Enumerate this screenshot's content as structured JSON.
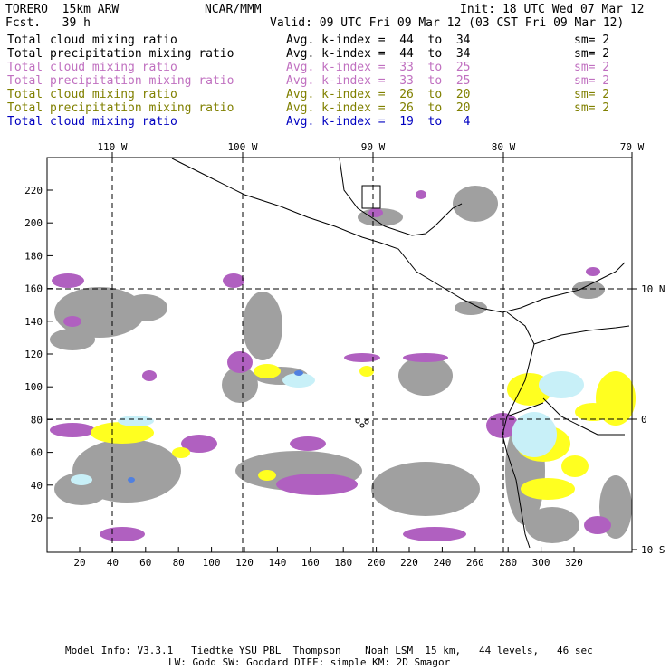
{
  "header": {
    "model": "TORERO  15km ARW",
    "center": "NCAR/MMM",
    "init": "Init: 18 UTC Wed 07 Mar 12",
    "fcst": "Fcst.   39 h",
    "valid": "Valid: 09 UTC Fri 09 Mar 12 (03 CST Fri 09 Mar 12)"
  },
  "legend": [
    {
      "field": "Total cloud mixing ratio",
      "kindex": "Avg. k-index =  44  to  34",
      "sm": "sm= 2",
      "color": "#000000"
    },
    {
      "field": "Total precipitation mixing ratio",
      "kindex": "Avg. k-index =  44  to  34",
      "sm": "sm= 2",
      "color": "#000000"
    },
    {
      "field": "Total cloud mixing ratio",
      "kindex": "Avg. k-index =  33  to  25",
      "sm": "sm= 2",
      "color": "#c070c0"
    },
    {
      "field": "Total precipitation mixing ratio",
      "kindex": "Avg. k-index =  33  to  25",
      "sm": "sm= 2",
      "color": "#c070c0"
    },
    {
      "field": "Total cloud mixing ratio",
      "kindex": "Avg. k-index =  26  to  20",
      "sm": "sm= 2",
      "color": "#808000"
    },
    {
      "field": "Total precipitation mixing ratio",
      "kindex": "Avg. k-index =  26  to  20",
      "sm": "sm= 2",
      "color": "#808000"
    },
    {
      "field": "Total cloud mixing ratio",
      "kindex": "Avg. k-index =  19  to   4",
      "sm": "",
      "color": "#0000c0"
    }
  ],
  "axes": {
    "top_lon": [
      "110 W",
      "100 W",
      "90 W",
      "80 W",
      "70 W"
    ],
    "right_lat": [
      "10 N",
      "0",
      "10 S"
    ],
    "x_ticks": [
      "20",
      "40",
      "60",
      "80",
      "100",
      "120",
      "140",
      "160",
      "180",
      "200",
      "220",
      "240",
      "260",
      "280",
      "300",
      "320"
    ],
    "y_ticks": [
      "20",
      "40",
      "60",
      "80",
      "100",
      "120",
      "140",
      "160",
      "180",
      "200",
      "220"
    ]
  },
  "footer": {
    "line1": "Model Info: V3.3.1   Tiedtke YSU PBL  Thompson    Noah LSM  15 km,   44 levels,   46 sec",
    "line2": "LW: Godd SW: Goddard DIFF: simple KM: 2D Smagor"
  },
  "colors": {
    "gray": "#a0a0a0",
    "purple": "#b060c0",
    "yellow": "#ffff20",
    "lightblue": "#c8f0f8",
    "blue": "#5080e0"
  }
}
